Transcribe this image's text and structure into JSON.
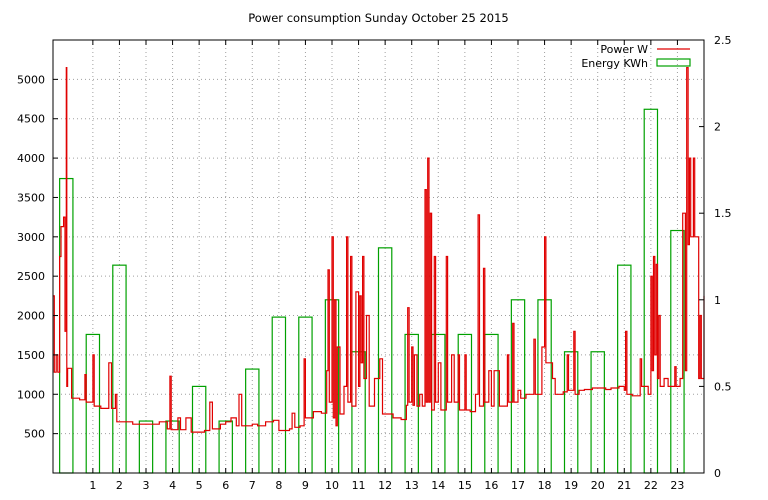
{
  "chart_data": {
    "type": "bar",
    "title": "Power consumption Sunday October 25 2015",
    "grid": true,
    "legend_position": "top-right",
    "x_range": [
      -0.5,
      24.0
    ],
    "x_ticks": [
      1,
      2,
      3,
      4,
      5,
      6,
      7,
      8,
      9,
      10,
      11,
      12,
      13,
      14,
      15,
      16,
      17,
      18,
      19,
      20,
      21,
      22,
      23
    ],
    "y_left": {
      "range": [
        0,
        5500
      ],
      "ticks": [
        500,
        1000,
        1500,
        2000,
        2500,
        3000,
        3500,
        4000,
        4500,
        5000
      ]
    },
    "y_right": {
      "range": [
        0,
        2.5
      ],
      "ticks": [
        0,
        0.5,
        1,
        1.5,
        2,
        2.5
      ]
    },
    "colors": {
      "power": "#e00000",
      "energy": "#00a000",
      "grid": "#a0a0a0",
      "axis": "#000000"
    },
    "series": [
      {
        "name": "Power W",
        "kind": "line",
        "axis": "left",
        "points": [
          [
            -0.5,
            2250
          ],
          [
            -0.45,
            1280
          ],
          [
            -0.38,
            1500
          ],
          [
            -0.32,
            1280
          ],
          [
            -0.25,
            2750
          ],
          [
            -0.2,
            3130
          ],
          [
            -0.1,
            3250
          ],
          [
            -0.05,
            1800
          ],
          [
            0.0,
            5150
          ],
          [
            0.02,
            1100
          ],
          [
            0.05,
            1330
          ],
          [
            0.15,
            1330
          ],
          [
            0.2,
            950
          ],
          [
            0.5,
            930
          ],
          [
            0.7,
            1250
          ],
          [
            0.75,
            900
          ],
          [
            1.0,
            1500
          ],
          [
            1.05,
            850
          ],
          [
            1.3,
            820
          ],
          [
            1.5,
            820
          ],
          [
            1.6,
            1400
          ],
          [
            1.7,
            820
          ],
          [
            1.85,
            1000
          ],
          [
            1.9,
            650
          ],
          [
            2.5,
            620
          ],
          [
            3.0,
            620
          ],
          [
            3.5,
            650
          ],
          [
            3.8,
            560
          ],
          [
            3.9,
            1230
          ],
          [
            3.95,
            550
          ],
          [
            4.2,
            700
          ],
          [
            4.3,
            550
          ],
          [
            4.5,
            700
          ],
          [
            4.7,
            520
          ],
          [
            5.2,
            540
          ],
          [
            5.4,
            900
          ],
          [
            5.5,
            560
          ],
          [
            5.8,
            620
          ],
          [
            6.0,
            650
          ],
          [
            6.2,
            700
          ],
          [
            6.4,
            600
          ],
          [
            6.5,
            1000
          ],
          [
            6.6,
            600
          ],
          [
            7.0,
            620
          ],
          [
            7.2,
            600
          ],
          [
            7.5,
            650
          ],
          [
            7.8,
            670
          ],
          [
            8.0,
            540
          ],
          [
            8.4,
            560
          ],
          [
            8.5,
            760
          ],
          [
            8.6,
            580
          ],
          [
            8.8,
            600
          ],
          [
            8.95,
            1450
          ],
          [
            9.0,
            700
          ],
          [
            9.3,
            780
          ],
          [
            9.6,
            760
          ],
          [
            9.8,
            1300
          ],
          [
            9.85,
            2580
          ],
          [
            9.9,
            900
          ],
          [
            10.0,
            3000
          ],
          [
            10.05,
            700
          ],
          [
            10.1,
            2200
          ],
          [
            10.15,
            600
          ],
          [
            10.2,
            1600
          ],
          [
            10.3,
            750
          ],
          [
            10.45,
            1100
          ],
          [
            10.55,
            3000
          ],
          [
            10.6,
            900
          ],
          [
            10.7,
            2750
          ],
          [
            10.75,
            850
          ],
          [
            10.9,
            2300
          ],
          [
            11.0,
            1100
          ],
          [
            11.05,
            2250
          ],
          [
            11.1,
            1400
          ],
          [
            11.15,
            2750
          ],
          [
            11.2,
            1200
          ],
          [
            11.3,
            2000
          ],
          [
            11.4,
            850
          ],
          [
            11.6,
            1200
          ],
          [
            11.8,
            1450
          ],
          [
            11.9,
            750
          ],
          [
            12.3,
            700
          ],
          [
            12.6,
            680
          ],
          [
            12.8,
            860
          ],
          [
            12.85,
            2100
          ],
          [
            12.9,
            900
          ],
          [
            13.0,
            1600
          ],
          [
            13.05,
            860
          ],
          [
            13.1,
            1500
          ],
          [
            13.2,
            850
          ],
          [
            13.3,
            1000
          ],
          [
            13.4,
            850
          ],
          [
            13.5,
            3600
          ],
          [
            13.55,
            900
          ],
          [
            13.6,
            4000
          ],
          [
            13.65,
            900
          ],
          [
            13.7,
            3300
          ],
          [
            13.75,
            800
          ],
          [
            13.85,
            2750
          ],
          [
            13.9,
            900
          ],
          [
            14.0,
            1400
          ],
          [
            14.1,
            800
          ],
          [
            14.3,
            2750
          ],
          [
            14.35,
            900
          ],
          [
            14.5,
            1500
          ],
          [
            14.6,
            900
          ],
          [
            14.75,
            1500
          ],
          [
            14.8,
            800
          ],
          [
            15.0,
            1500
          ],
          [
            15.05,
            800
          ],
          [
            15.2,
            780
          ],
          [
            15.4,
            1000
          ],
          [
            15.5,
            3280
          ],
          [
            15.55,
            850
          ],
          [
            15.7,
            2600
          ],
          [
            15.75,
            900
          ],
          [
            15.9,
            1300
          ],
          [
            16.0,
            850
          ],
          [
            16.1,
            1300
          ],
          [
            16.3,
            850
          ],
          [
            16.6,
            1500
          ],
          [
            16.65,
            900
          ],
          [
            16.8,
            1900
          ],
          [
            16.85,
            900
          ],
          [
            17.0,
            1050
          ],
          [
            17.1,
            950
          ],
          [
            17.3,
            1000
          ],
          [
            17.5,
            1000
          ],
          [
            17.6,
            1700
          ],
          [
            17.65,
            1000
          ],
          [
            17.9,
            1600
          ],
          [
            18.0,
            3000
          ],
          [
            18.05,
            1400
          ],
          [
            18.3,
            1200
          ],
          [
            18.4,
            1000
          ],
          [
            18.7,
            1030
          ],
          [
            18.85,
            1500
          ],
          [
            18.9,
            1050
          ],
          [
            19.1,
            1800
          ],
          [
            19.15,
            1000
          ],
          [
            19.3,
            1050
          ],
          [
            19.5,
            1060
          ],
          [
            19.8,
            1080
          ],
          [
            20.0,
            1080
          ],
          [
            20.3,
            1060
          ],
          [
            20.5,
            1080
          ],
          [
            20.8,
            1100
          ],
          [
            21.0,
            1050
          ],
          [
            21.05,
            1800
          ],
          [
            21.1,
            1000
          ],
          [
            21.3,
            980
          ],
          [
            21.6,
            1450
          ],
          [
            21.65,
            1100
          ],
          [
            21.9,
            1000
          ],
          [
            22.0,
            2500
          ],
          [
            22.05,
            1300
          ],
          [
            22.1,
            2750
          ],
          [
            22.15,
            1500
          ],
          [
            22.2,
            2650
          ],
          [
            22.25,
            1200
          ],
          [
            22.3,
            2000
          ],
          [
            22.35,
            1100
          ],
          [
            22.5,
            1200
          ],
          [
            22.65,
            1100
          ],
          [
            22.9,
            1350
          ],
          [
            22.95,
            1100
          ],
          [
            23.1,
            1200
          ],
          [
            23.2,
            3300
          ],
          [
            23.3,
            1300
          ],
          [
            23.35,
            5150
          ],
          [
            23.4,
            2900
          ],
          [
            23.45,
            4000
          ],
          [
            23.5,
            3000
          ],
          [
            23.6,
            4000
          ],
          [
            23.65,
            3000
          ],
          [
            23.75,
            3000
          ],
          [
            23.8,
            1200
          ],
          [
            23.85,
            2000
          ],
          [
            23.9,
            1200
          ],
          [
            24.0,
            2250
          ]
        ]
      },
      {
        "name": "Energy KWh",
        "kind": "bar",
        "axis": "right",
        "x": [
          0,
          1,
          2,
          3,
          4,
          5,
          6,
          7,
          8,
          9,
          10,
          11,
          12,
          13,
          14,
          15,
          16,
          17,
          18,
          19,
          20,
          21,
          22,
          23
        ],
        "values": [
          1.7,
          0.8,
          1.2,
          0.3,
          0.3,
          0.5,
          0.3,
          0.6,
          0.9,
          0.9,
          1.0,
          0.7,
          1.3,
          0.8,
          0.8,
          0.8,
          0.8,
          1.0,
          1.0,
          0.7,
          0.7,
          1.2,
          2.1,
          1.4
        ]
      }
    ]
  }
}
